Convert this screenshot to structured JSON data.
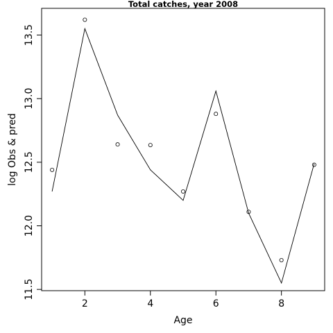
{
  "chart_data": {
    "type": "scatter",
    "title": "Total catches, year 2008",
    "xlabel": "Age",
    "ylabel": "log Obs & pred",
    "x": [
      1,
      2,
      3,
      4,
      5,
      6,
      7,
      8,
      9
    ],
    "series": [
      {
        "kind": "points",
        "marker": "open-circle",
        "values": [
          12.44,
          13.62,
          12.64,
          12.635,
          12.27,
          12.88,
          12.11,
          11.73,
          12.48
        ]
      },
      {
        "kind": "line",
        "values": [
          12.27,
          13.55,
          12.87,
          12.44,
          12.2,
          13.06,
          12.1,
          11.55,
          12.49
        ]
      }
    ],
    "xlim": [
      0.68,
      9.32
    ],
    "ylim": [
      11.49,
      13.71
    ],
    "xticks": [
      2,
      4,
      6,
      8
    ],
    "xtick_labels": [
      "2",
      "4",
      "6",
      "8"
    ],
    "yticks": [
      11.5,
      12.0,
      12.5,
      13.0,
      13.5
    ],
    "ytick_labels": [
      "11.5",
      "12.0",
      "12.5",
      "13.0",
      "13.5"
    ],
    "grid": false,
    "legend": "none"
  }
}
